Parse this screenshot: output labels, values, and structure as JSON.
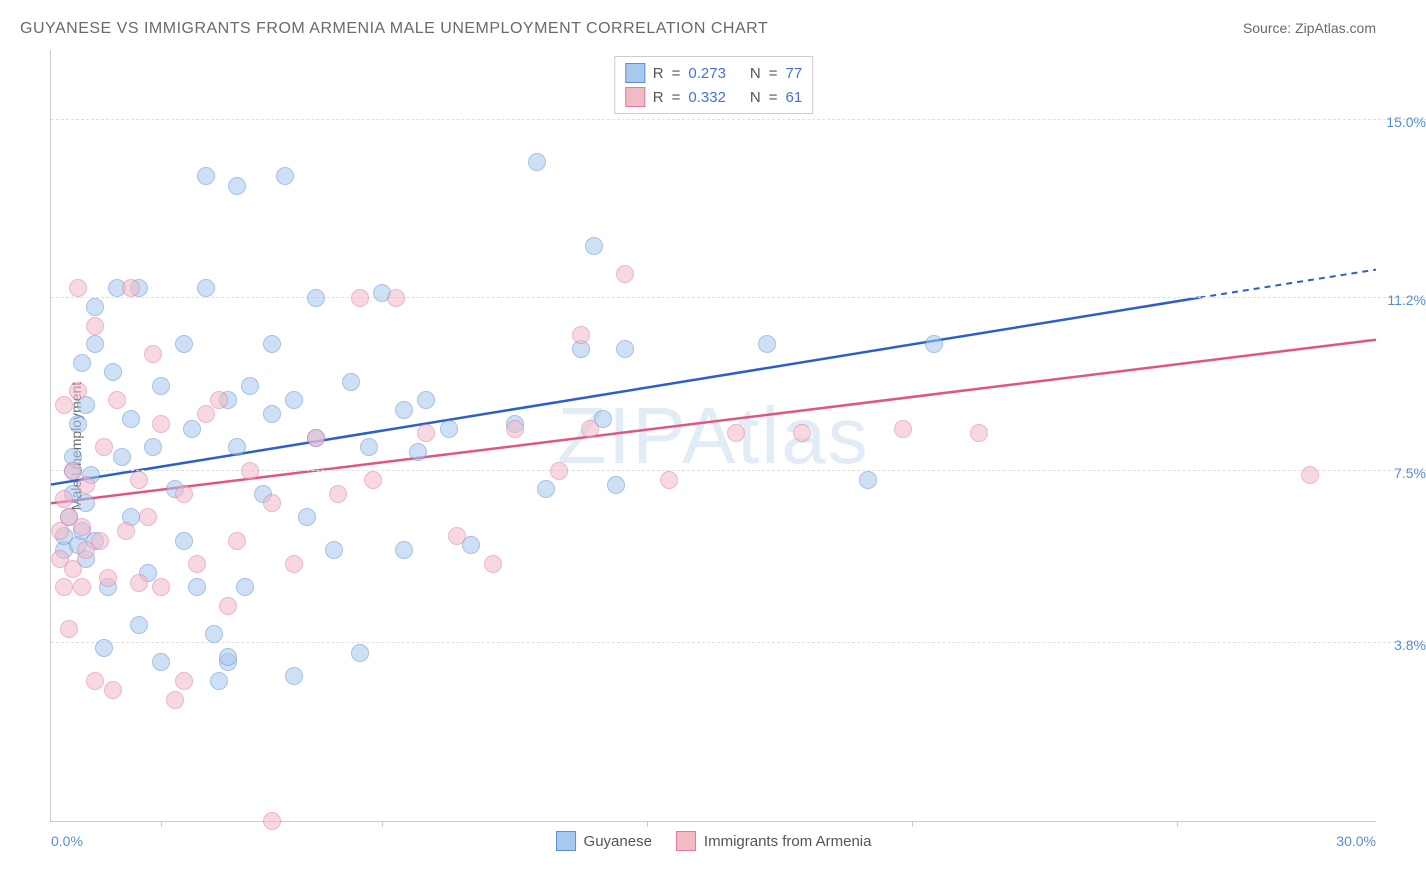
{
  "header": {
    "title": "GUYANESE VS IMMIGRANTS FROM ARMENIA MALE UNEMPLOYMENT CORRELATION CHART",
    "source_prefix": "Source: ",
    "source_name": "ZipAtlas.com"
  },
  "watermark": "ZIPAtlas",
  "chart": {
    "type": "scatter",
    "yaxis_title": "Male Unemployment",
    "background_color": "#ffffff",
    "grid_color": "#e0e0e0",
    "axis_line_color": "#cccccc",
    "tick_label_color": "#558ed5",
    "x_domain": [
      0,
      30
    ],
    "x_range_label_min": "0.0%",
    "x_range_label_max": "30.0%",
    "x_ticks_at": [
      2.5,
      7.5,
      13.5,
      19.5,
      25.5
    ],
    "y_gridlines": [
      {
        "value": 3.8,
        "label": "3.8%"
      },
      {
        "value": 7.5,
        "label": "7.5%"
      },
      {
        "value": 11.2,
        "label": "11.2%"
      },
      {
        "value": 15.0,
        "label": "15.0%"
      }
    ],
    "y_domain": [
      0,
      16.5
    ],
    "stats_legend": {
      "r_prefix": "R",
      "n_prefix": "N",
      "equals": "=",
      "series": [
        {
          "color_fill": "#a7c8ef",
          "color_border": "#5f8fd3",
          "r": "0.273",
          "n": "77"
        },
        {
          "color_fill": "#f2b9c7",
          "color_border": "#e27aa0",
          "r": "0.332",
          "n": "61"
        }
      ]
    },
    "bottom_legend": [
      {
        "label": "Guyanese",
        "color_fill": "#a7c8ef",
        "color_border": "#5f8fd3"
      },
      {
        "label": "Immigrants from Armenia",
        "color_fill": "#f2b9c7",
        "color_border": "#e27aa0"
      }
    ],
    "trend_lines": [
      {
        "name": "guyanese-trend",
        "color": "#2a5fcc",
        "solid_from": [
          0,
          7.2
        ],
        "solid_to": [
          26,
          11.2
        ],
        "dashed_to": [
          30,
          11.8
        ]
      },
      {
        "name": "armenia-trend",
        "color": "#e0567e",
        "solid_from": [
          0,
          6.8
        ],
        "solid_to": [
          30,
          10.3
        ]
      }
    ],
    "series": [
      {
        "name": "Guyanese",
        "point_fill": "#a7c8ef",
        "point_border": "#5f8fd3",
        "points": [
          [
            0.3,
            5.8
          ],
          [
            0.3,
            6.1
          ],
          [
            0.4,
            6.5
          ],
          [
            0.5,
            7.0
          ],
          [
            0.5,
            7.5
          ],
          [
            0.5,
            7.8
          ],
          [
            0.6,
            5.9
          ],
          [
            0.6,
            8.5
          ],
          [
            0.7,
            6.2
          ],
          [
            0.7,
            9.8
          ],
          [
            0.8,
            5.6
          ],
          [
            0.8,
            6.8
          ],
          [
            0.8,
            8.9
          ],
          [
            0.9,
            7.4
          ],
          [
            1.0,
            11.0
          ],
          [
            1.0,
            6.0
          ],
          [
            1.0,
            10.2
          ],
          [
            1.2,
            3.7
          ],
          [
            1.3,
            5.0
          ],
          [
            1.4,
            9.6
          ],
          [
            1.5,
            11.4
          ],
          [
            1.6,
            7.8
          ],
          [
            1.8,
            8.6
          ],
          [
            1.8,
            6.5
          ],
          [
            2.0,
            11.4
          ],
          [
            2.0,
            4.2
          ],
          [
            2.2,
            5.3
          ],
          [
            2.3,
            8.0
          ],
          [
            2.5,
            3.4
          ],
          [
            2.5,
            9.3
          ],
          [
            2.8,
            7.1
          ],
          [
            3.0,
            6.0
          ],
          [
            3.0,
            10.2
          ],
          [
            3.2,
            8.4
          ],
          [
            3.3,
            5.0
          ],
          [
            3.5,
            11.4
          ],
          [
            3.5,
            13.8
          ],
          [
            3.8,
            3.0
          ],
          [
            4.0,
            9.0
          ],
          [
            4.0,
            3.4
          ],
          [
            4.2,
            13.6
          ],
          [
            4.2,
            8.0
          ],
          [
            4.4,
            5.0
          ],
          [
            4.5,
            9.3
          ],
          [
            4.8,
            7.0
          ],
          [
            5.0,
            8.7
          ],
          [
            5.0,
            10.2
          ],
          [
            5.3,
            13.8
          ],
          [
            5.5,
            3.1
          ],
          [
            5.5,
            9.0
          ],
          [
            5.8,
            6.5
          ],
          [
            6.0,
            8.2
          ],
          [
            6.0,
            11.2
          ],
          [
            6.4,
            5.8
          ],
          [
            6.8,
            9.4
          ],
          [
            7.0,
            3.6
          ],
          [
            7.2,
            8.0
          ],
          [
            7.5,
            11.3
          ],
          [
            8.0,
            8.8
          ],
          [
            8.0,
            5.8
          ],
          [
            8.3,
            7.9
          ],
          [
            8.5,
            9.0
          ],
          [
            9.0,
            8.4
          ],
          [
            9.5,
            5.9
          ],
          [
            10.5,
            8.5
          ],
          [
            11.0,
            14.1
          ],
          [
            11.2,
            7.1
          ],
          [
            12.0,
            10.1
          ],
          [
            12.3,
            12.3
          ],
          [
            12.5,
            8.6
          ],
          [
            12.8,
            7.2
          ],
          [
            13.0,
            10.1
          ],
          [
            16.2,
            10.2
          ],
          [
            18.5,
            7.3
          ],
          [
            20.0,
            10.2
          ],
          [
            4.0,
            3.5
          ],
          [
            3.7,
            4.0
          ]
        ]
      },
      {
        "name": "Immigrants from Armenia",
        "point_fill": "#f2b9c7",
        "point_border": "#e27aa0",
        "points": [
          [
            0.2,
            5.6
          ],
          [
            0.2,
            6.2
          ],
          [
            0.3,
            6.9
          ],
          [
            0.3,
            5.0
          ],
          [
            0.3,
            8.9
          ],
          [
            0.4,
            4.1
          ],
          [
            0.4,
            6.5
          ],
          [
            0.5,
            5.4
          ],
          [
            0.5,
            7.5
          ],
          [
            0.6,
            9.2
          ],
          [
            0.6,
            11.4
          ],
          [
            0.7,
            5.0
          ],
          [
            0.7,
            6.3
          ],
          [
            0.8,
            5.8
          ],
          [
            0.8,
            7.2
          ],
          [
            1.0,
            3.0
          ],
          [
            1.0,
            10.6
          ],
          [
            1.1,
            6.0
          ],
          [
            1.2,
            8.0
          ],
          [
            1.3,
            5.2
          ],
          [
            1.4,
            2.8
          ],
          [
            1.5,
            9.0
          ],
          [
            1.7,
            6.2
          ],
          [
            1.8,
            11.4
          ],
          [
            2.0,
            5.1
          ],
          [
            2.0,
            7.3
          ],
          [
            2.2,
            6.5
          ],
          [
            2.3,
            10.0
          ],
          [
            2.5,
            5.0
          ],
          [
            2.5,
            8.5
          ],
          [
            2.8,
            2.6
          ],
          [
            3.0,
            7.0
          ],
          [
            3.0,
            3.0
          ],
          [
            3.3,
            5.5
          ],
          [
            3.5,
            8.7
          ],
          [
            3.8,
            9.0
          ],
          [
            4.0,
            4.6
          ],
          [
            4.2,
            6.0
          ],
          [
            4.5,
            7.5
          ],
          [
            5.0,
            6.8
          ],
          [
            5.0,
            0.0
          ],
          [
            5.5,
            5.5
          ],
          [
            6.0,
            8.2
          ],
          [
            6.5,
            7.0
          ],
          [
            7.0,
            11.2
          ],
          [
            7.3,
            7.3
          ],
          [
            7.8,
            11.2
          ],
          [
            8.5,
            8.3
          ],
          [
            9.2,
            6.1
          ],
          [
            10.0,
            5.5
          ],
          [
            10.5,
            8.4
          ],
          [
            11.5,
            7.5
          ],
          [
            12.0,
            10.4
          ],
          [
            12.2,
            8.4
          ],
          [
            13.0,
            11.7
          ],
          [
            14.0,
            7.3
          ],
          [
            15.5,
            8.3
          ],
          [
            17.0,
            8.3
          ],
          [
            19.3,
            8.4
          ],
          [
            21.0,
            8.3
          ],
          [
            28.5,
            7.4
          ]
        ]
      }
    ]
  }
}
